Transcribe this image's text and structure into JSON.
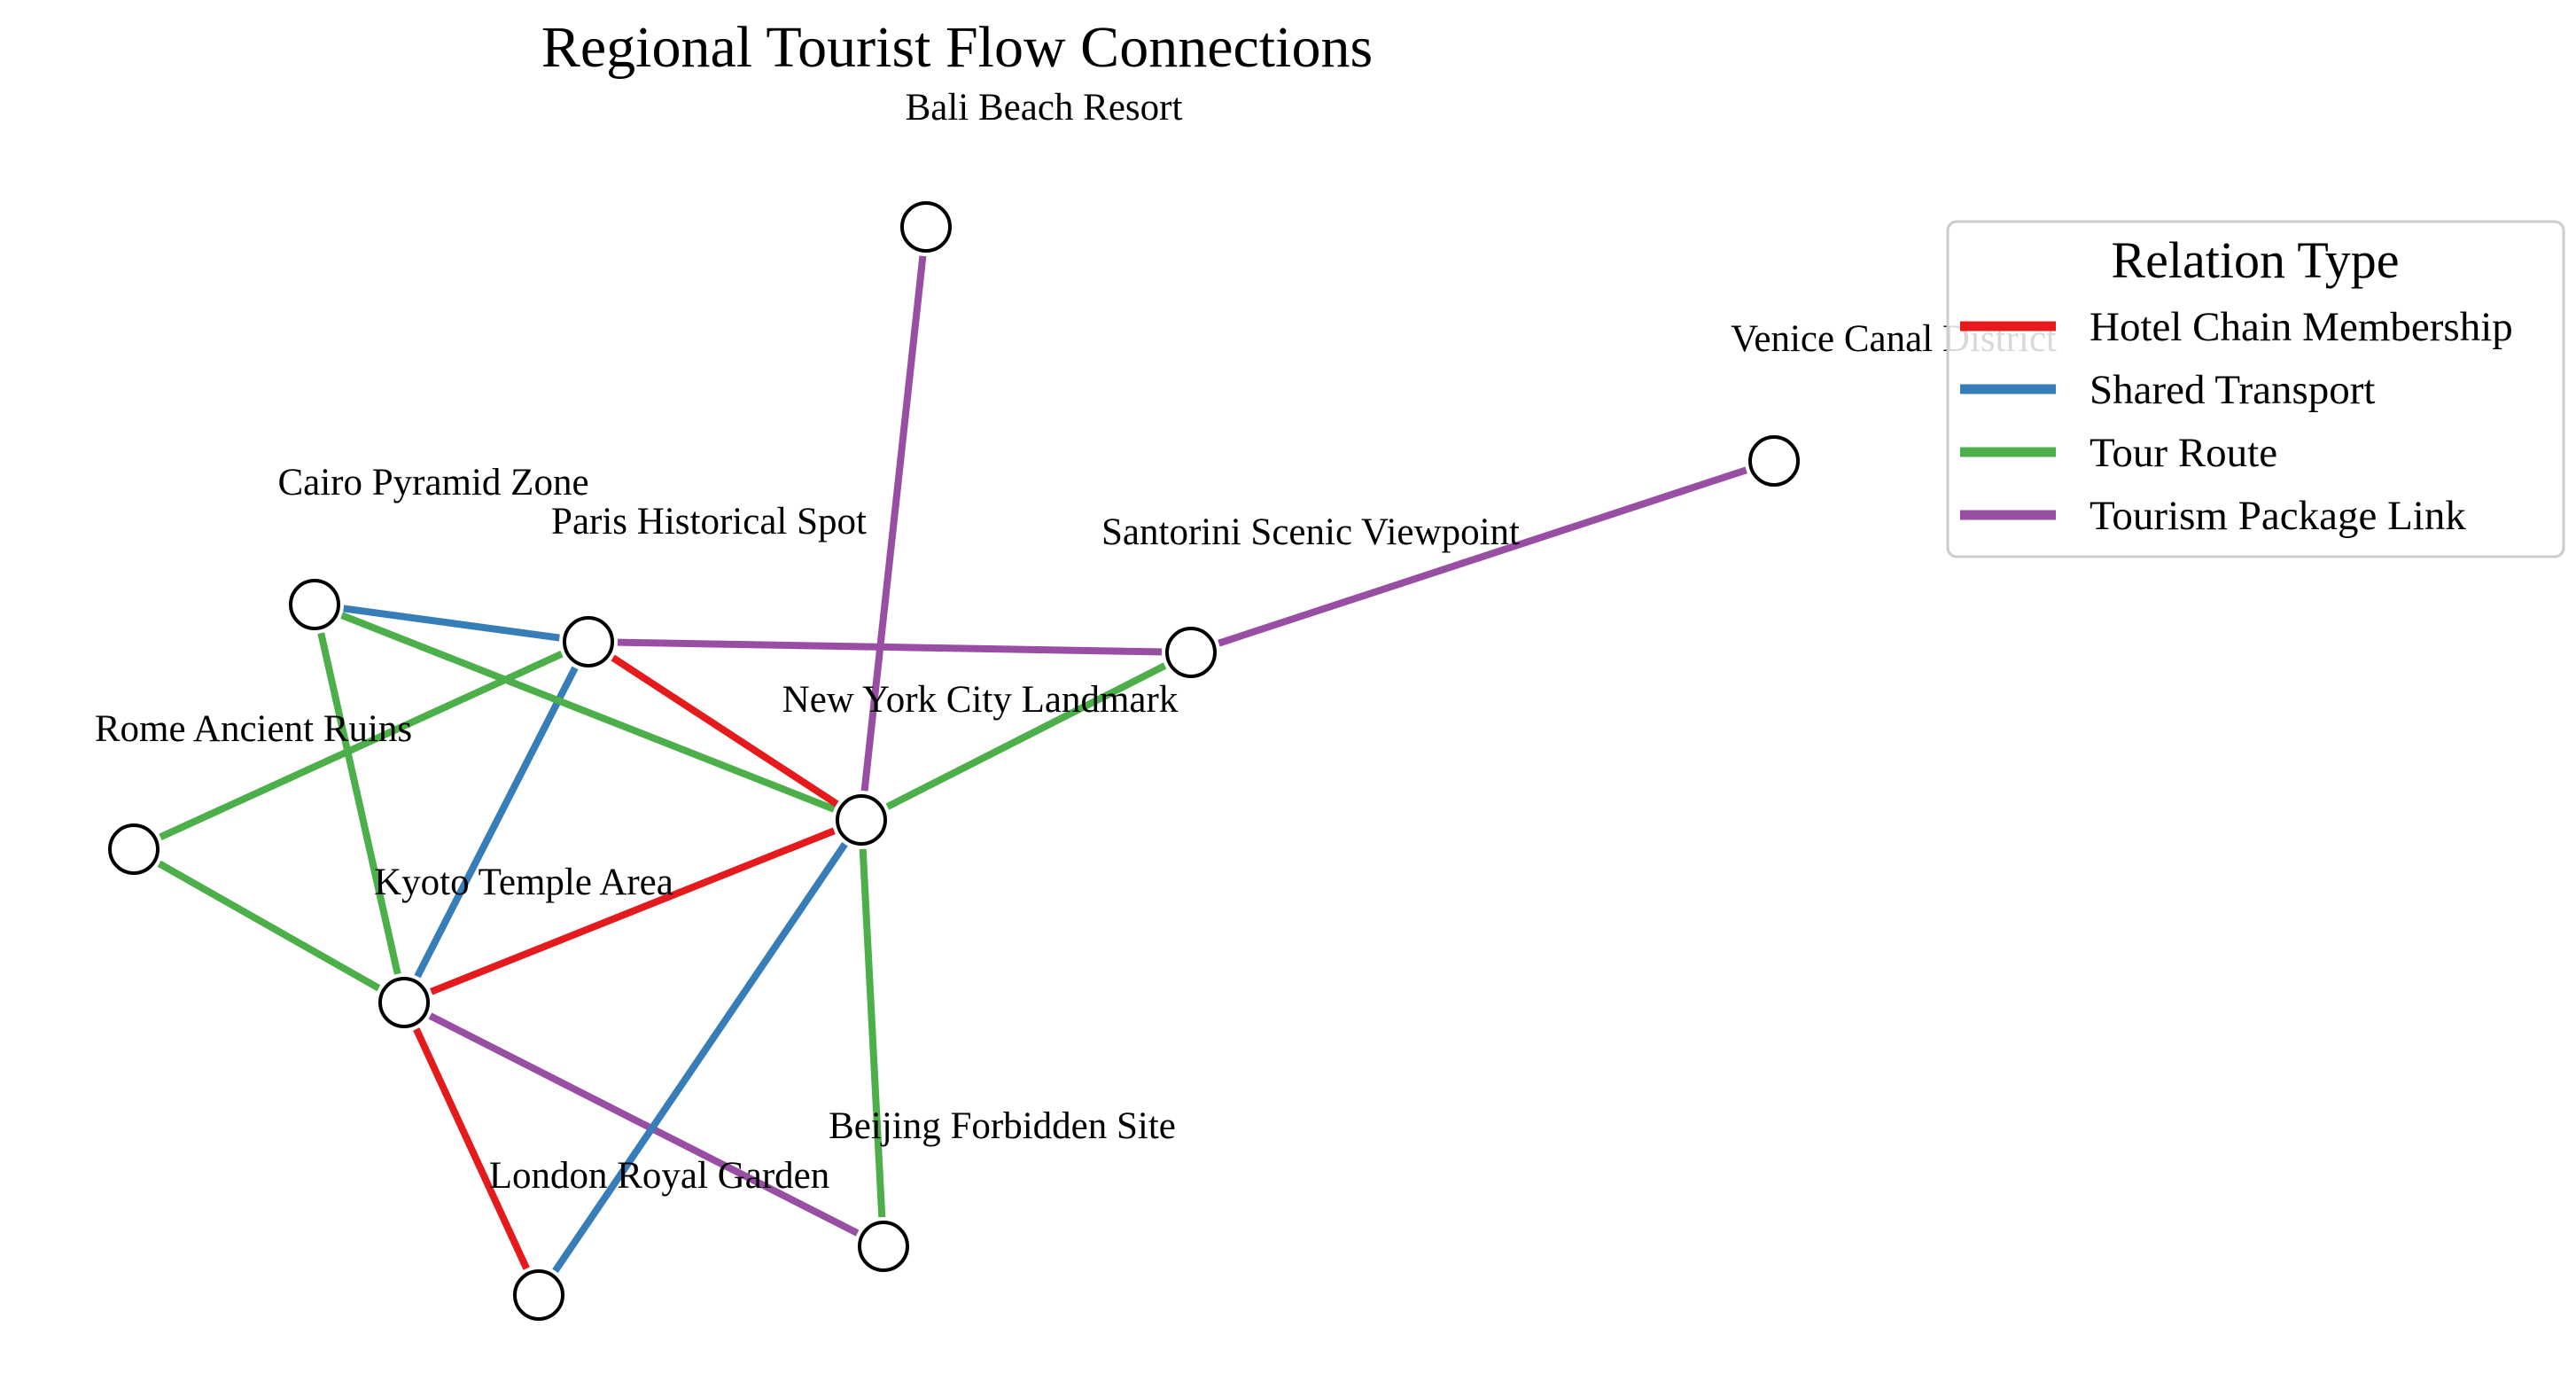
{
  "title": "Regional Tourist Flow Connections",
  "nodes": [
    {
      "id": "bali",
      "label": "Bali Beach Resort"
    },
    {
      "id": "venice",
      "label": "Venice Canal District"
    },
    {
      "id": "cairo",
      "label": "Cairo Pyramid Zone"
    },
    {
      "id": "paris",
      "label": "Paris Historical Spot"
    },
    {
      "id": "santorini",
      "label": "Santorini Scenic Viewpoint"
    },
    {
      "id": "nyc",
      "label": "New York City Landmark"
    },
    {
      "id": "rome",
      "label": "Rome Ancient Ruins"
    },
    {
      "id": "kyoto",
      "label": "Kyoto Temple Area"
    },
    {
      "id": "beijing",
      "label": "Beijing Forbidden Site"
    },
    {
      "id": "london",
      "label": "London Royal Garden"
    }
  ],
  "edges": [
    {
      "source": "bali",
      "target": "nyc",
      "type": "Tourism Package Link"
    },
    {
      "source": "venice",
      "target": "santorini",
      "type": "Tourism Package Link"
    },
    {
      "source": "paris",
      "target": "santorini",
      "type": "Tourism Package Link"
    },
    {
      "source": "kyoto",
      "target": "beijing",
      "type": "Tourism Package Link"
    },
    {
      "source": "cairo",
      "target": "paris",
      "type": "Shared Transport"
    },
    {
      "source": "paris",
      "target": "kyoto",
      "type": "Shared Transport"
    },
    {
      "source": "nyc",
      "target": "london",
      "type": "Shared Transport"
    },
    {
      "source": "cairo",
      "target": "nyc",
      "type": "Tour Route"
    },
    {
      "source": "cairo",
      "target": "kyoto",
      "type": "Tour Route"
    },
    {
      "source": "rome",
      "target": "paris",
      "type": "Tour Route"
    },
    {
      "source": "rome",
      "target": "kyoto",
      "type": "Tour Route"
    },
    {
      "source": "santorini",
      "target": "nyc",
      "type": "Tour Route"
    },
    {
      "source": "nyc",
      "target": "beijing",
      "type": "Tour Route"
    },
    {
      "source": "paris",
      "target": "nyc",
      "type": "Hotel Chain Membership"
    },
    {
      "source": "kyoto",
      "target": "nyc",
      "type": "Hotel Chain Membership"
    },
    {
      "source": "kyoto",
      "target": "london",
      "type": "Hotel Chain Membership"
    }
  ],
  "legend": {
    "title": "Relation Type",
    "items": [
      {
        "label": "Hotel Chain Membership",
        "color": "#e41a1c"
      },
      {
        "label": "Shared Transport",
        "color": "#377eb8"
      },
      {
        "label": "Tour Route",
        "color": "#4daf4a"
      },
      {
        "label": "Tourism Package Link",
        "color": "#984ea3"
      }
    ]
  }
}
